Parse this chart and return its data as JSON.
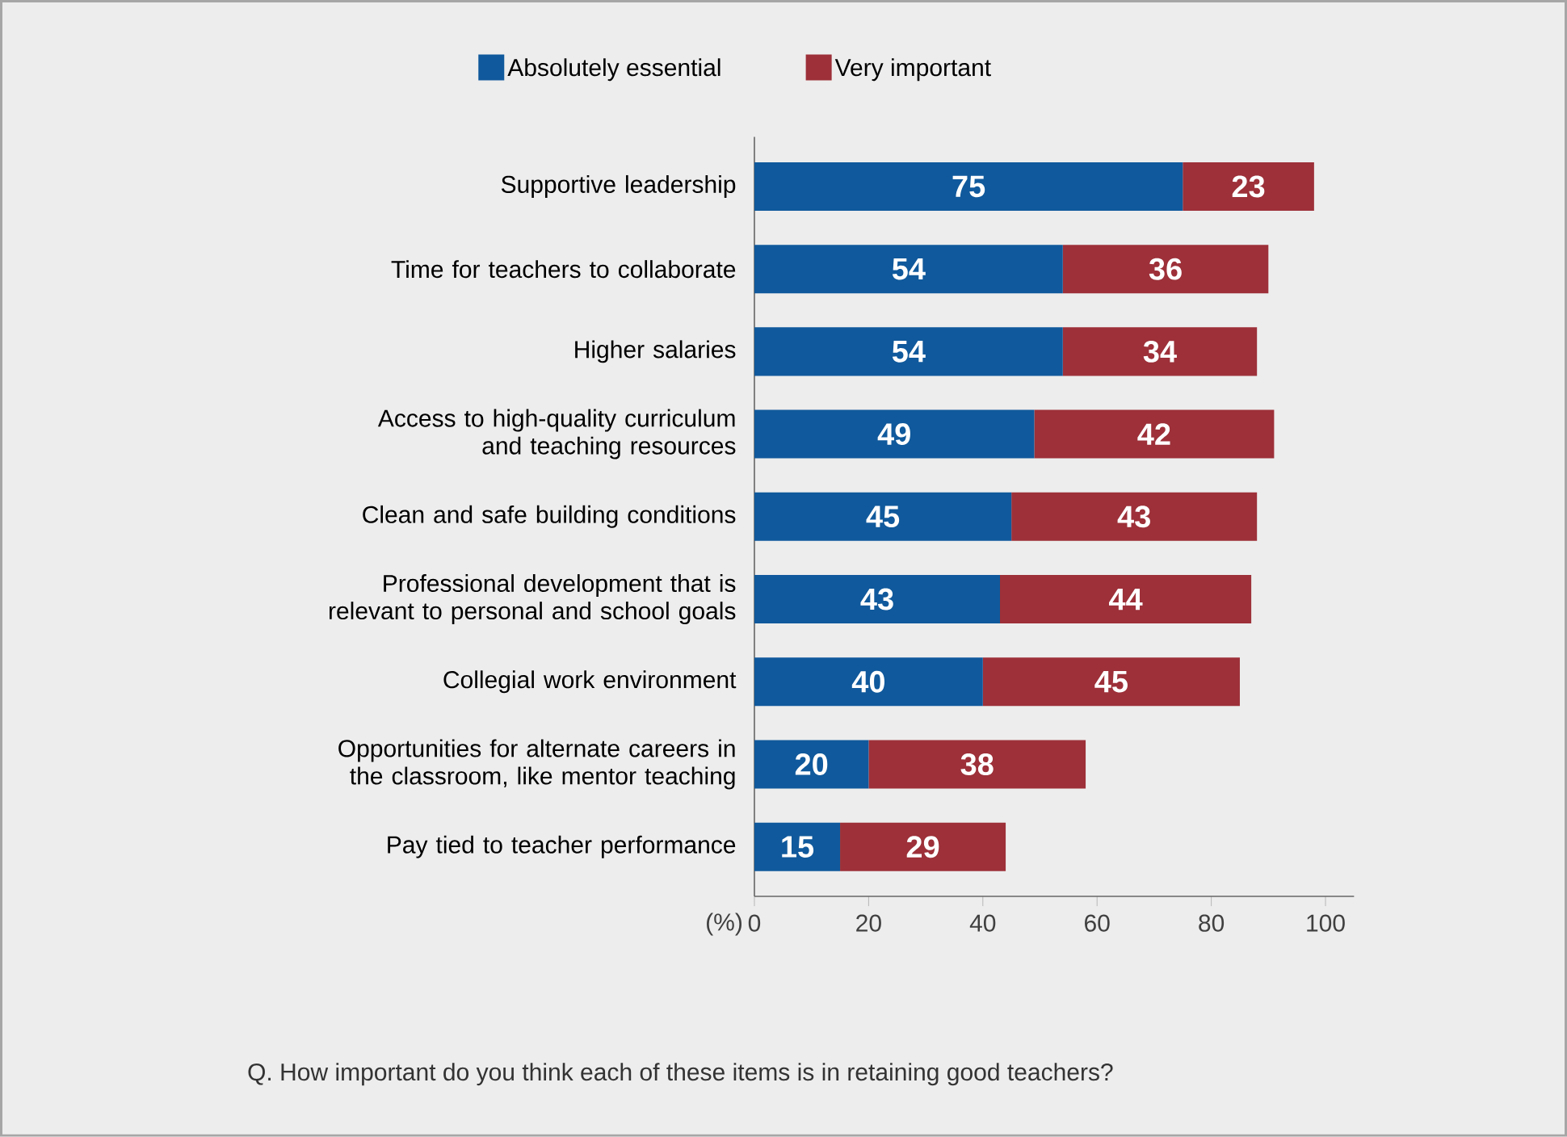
{
  "chart_data": {
    "type": "bar",
    "orientation": "horizontal",
    "stacked": true,
    "data_labels": true,
    "legend": "top",
    "grid": false,
    "xlabel": "(%)",
    "xlim": [
      0,
      105
    ],
    "xticks": [
      0,
      20,
      40,
      60,
      80,
      100
    ],
    "categories": [
      "Supportive leadership",
      "Time for teachers to collaborate",
      "Higher salaries",
      "Access to high-quality curriculum and teaching resources",
      "Clean and safe building conditions",
      "Professional development that is relevant to personal and school goals",
      "Collegial work environment",
      "Opportunities for alternate careers in the classroom, like mentor teaching",
      "Pay tied to teacher performance"
    ],
    "series": [
      {
        "name": "Absolutely essential",
        "color": "#10599c",
        "values": [
          75,
          54,
          54,
          49,
          45,
          43,
          40,
          20,
          15
        ]
      },
      {
        "name": "Very important",
        "color": "#9d3039",
        "values": [
          23,
          36,
          34,
          42,
          43,
          44,
          45,
          38,
          29
        ]
      }
    ],
    "annotations": [
      "Q. How important do you think each of these items is in retaining good teachers?"
    ]
  }
}
